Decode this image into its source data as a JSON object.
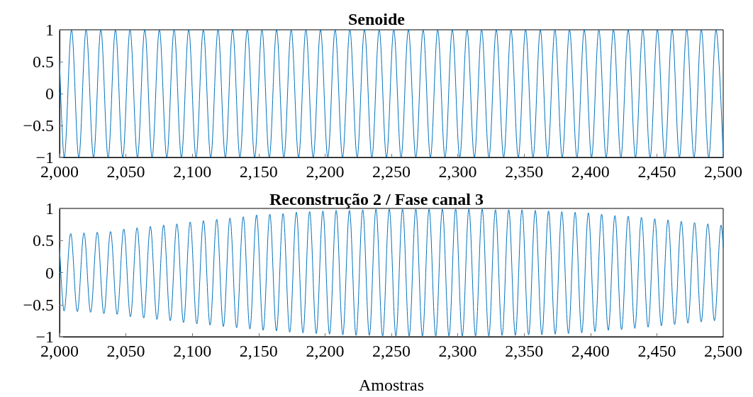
{
  "chart_data": [
    {
      "type": "line",
      "title": "Senoide",
      "color": "#0072bd",
      "line_style": "solid",
      "grid": false,
      "legend": false,
      "x": [
        2000,
        2003.5,
        2009.0,
        2014.5,
        2020.0,
        2025.6,
        2031.1,
        2036.6,
        2042.1,
        2047.6,
        2053.1,
        2058.7,
        2064.2,
        2069.7,
        2075.2,
        2080.8,
        2086.3,
        2091.8,
        2097.3,
        2102.8,
        2108.3,
        2113.9,
        2119.4,
        2124.9,
        2130.4,
        2135.9,
        2141.4,
        2147.0,
        2152.5,
        2158.0,
        2163.5,
        2169.0,
        2174.5,
        2180.1,
        2185.6,
        2191.1,
        2196.6,
        2202.1,
        2207.6,
        2213.2,
        2218.7,
        2224.2,
        2229.7,
        2235.3,
        2240.8,
        2246.3,
        2251.8,
        2257.3,
        2262.8,
        2268.4,
        2273.9,
        2279.4,
        2284.9,
        2290.4,
        2295.9,
        2301.5,
        2307.0,
        2312.5,
        2318.0,
        2323.5,
        2329.0,
        2334.6,
        2340.1,
        2345.6,
        2351.1,
        2356.7,
        2362.2,
        2367.7,
        2373.2,
        2378.7,
        2384.2,
        2389.8,
        2395.3,
        2400.8,
        2406.3,
        2411.8,
        2417.3,
        2422.9,
        2428.4,
        2433.9,
        2439.4,
        2444.9,
        2450.4,
        2456.0,
        2461.5,
        2467.0,
        2472.5,
        2478.0,
        2483.5,
        2489.1,
        2494.6,
        2500
      ],
      "values": [
        0.5,
        -1,
        1,
        -1,
        1,
        -1,
        1,
        -1,
        1,
        -1,
        1,
        -1,
        1,
        -1,
        1,
        -1,
        1,
        -1,
        1,
        -1,
        1,
        -1,
        1,
        -1,
        1,
        -1,
        1,
        -1,
        1,
        -1,
        1,
        -1,
        1,
        -1,
        1,
        -1,
        1,
        -1,
        1,
        -1,
        1,
        -1,
        1,
        -1,
        1,
        -1,
        1,
        -1,
        1,
        -1,
        1,
        -1,
        1,
        -1,
        1,
        -1,
        1,
        -1,
        1,
        -1,
        1,
        -1,
        1,
        -1,
        1,
        -1,
        1,
        -1,
        1,
        -1,
        1,
        -1,
        1,
        -1,
        1,
        -1,
        1,
        -1,
        1,
        -1,
        1,
        -1,
        1,
        -1,
        1,
        -1,
        1,
        -1,
        1,
        -1,
        1,
        -1
      ],
      "xlim": [
        2000,
        2500
      ],
      "xticks": [
        {
          "value": 2000,
          "label": "2,000"
        },
        {
          "value": 2050,
          "label": "2,050"
        },
        {
          "value": 2100,
          "label": "2,100"
        },
        {
          "value": 2150,
          "label": "2,150"
        },
        {
          "value": 2200,
          "label": "2,200"
        },
        {
          "value": 2250,
          "label": "2,250"
        },
        {
          "value": 2300,
          "label": "2,300"
        },
        {
          "value": 2350,
          "label": "2,350"
        },
        {
          "value": 2400,
          "label": "2,400"
        },
        {
          "value": 2450,
          "label": "2,450"
        },
        {
          "value": 2500,
          "label": "2,500"
        }
      ],
      "ylim": [
        -1,
        1
      ],
      "yticks": [
        -1,
        -0.5,
        0,
        0.5,
        1
      ]
    },
    {
      "type": "line",
      "title": "Reconstrução 2 / Fase canal 3",
      "xlabel": "Amostras",
      "color": "#0072bd",
      "line_style": "solid",
      "grid": false,
      "legend": false,
      "x": [
        2000,
        2003.4,
        2008.4,
        2013.4,
        2018.4,
        2023.4,
        2028.4,
        2033.4,
        2038.4,
        2043.4,
        2048.4,
        2053.4,
        2058.4,
        2063.4,
        2068.4,
        2073.4,
        2078.4,
        2083.4,
        2088.4,
        2093.4,
        2098.4,
        2103.4,
        2108.4,
        2113.4,
        2118.4,
        2123.4,
        2128.4,
        2133.4,
        2138.4,
        2143.4,
        2148.4,
        2153.4,
        2158.4,
        2163.4,
        2168.4,
        2173.4,
        2178.4,
        2183.4,
        2188.4,
        2193.4,
        2198.4,
        2203.4,
        2208.4,
        2213.4,
        2218.4,
        2223.4,
        2228.4,
        2233.4,
        2238.4,
        2243.4,
        2248.4,
        2253.4,
        2258.4,
        2263.4,
        2268.4,
        2273.4,
        2278.4,
        2283.4,
        2288.4,
        2293.4,
        2298.4,
        2303.4,
        2308.4,
        2313.4,
        2318.4,
        2323.4,
        2328.4,
        2333.4,
        2338.4,
        2343.4,
        2348.4,
        2353.4,
        2358.4,
        2363.4,
        2368.4,
        2373.4,
        2378.4,
        2383.4,
        2388.4,
        2393.4,
        2398.4,
        2403.4,
        2408.4,
        2413.4,
        2418.4,
        2423.4,
        2428.4,
        2433.4,
        2438.4,
        2443.4,
        2448.4,
        2453.4,
        2458.4,
        2463.4,
        2468.4,
        2473.4,
        2478.4,
        2483.4,
        2488.4,
        2493.4,
        2498.4,
        2500
      ],
      "values": [
        0.39,
        -0.6,
        0.61,
        -0.61,
        0.62,
        -0.62,
        0.63,
        -0.64,
        0.64,
        -0.65,
        0.68,
        -0.69,
        0.7,
        -0.71,
        0.72,
        -0.73,
        0.74,
        -0.75,
        0.76,
        -0.78,
        0.79,
        -0.8,
        0.81,
        -0.82,
        0.83,
        -0.84,
        0.85,
        -0.86,
        0.87,
        -0.88,
        0.9,
        -0.9,
        0.91,
        -0.91,
        0.92,
        -0.93,
        0.94,
        -0.94,
        0.95,
        -0.95,
        0.96,
        -0.96,
        0.97,
        -0.97,
        0.97,
        -0.98,
        0.98,
        -0.98,
        0.99,
        -0.99,
        0.99,
        -0.99,
        0.99,
        -0.99,
        0.99,
        -0.99,
        0.99,
        -0.99,
        0.99,
        -0.99,
        0.99,
        -0.99,
        0.99,
        -0.99,
        0.99,
        -0.99,
        0.98,
        -0.98,
        0.98,
        -0.98,
        0.98,
        -0.97,
        0.97,
        -0.97,
        0.96,
        -0.96,
        0.95,
        -0.95,
        0.94,
        -0.94,
        0.93,
        -0.92,
        0.91,
        -0.9,
        0.89,
        -0.89,
        0.88,
        -0.87,
        0.86,
        -0.85,
        0.84,
        -0.83,
        0.82,
        -0.81,
        0.8,
        -0.79,
        0.78,
        -0.77,
        0.76,
        -0.75,
        0.74,
        0.4
      ],
      "xlim": [
        2000,
        2500
      ],
      "xticks": [
        {
          "value": 2000,
          "label": "2,000"
        },
        {
          "value": 2050,
          "label": "2,050"
        },
        {
          "value": 2100,
          "label": "2,100"
        },
        {
          "value": 2150,
          "label": "2,150"
        },
        {
          "value": 2200,
          "label": "2,200"
        },
        {
          "value": 2250,
          "label": "2,250"
        },
        {
          "value": 2300,
          "label": "2,300"
        },
        {
          "value": 2350,
          "label": "2,350"
        },
        {
          "value": 2400,
          "label": "2,400"
        },
        {
          "value": 2450,
          "label": "2,450"
        },
        {
          "value": 2500,
          "label": "2,500"
        }
      ],
      "ylim": [
        -1,
        1
      ],
      "yticks": [
        -1,
        -0.5,
        0,
        0.5,
        1
      ]
    }
  ]
}
